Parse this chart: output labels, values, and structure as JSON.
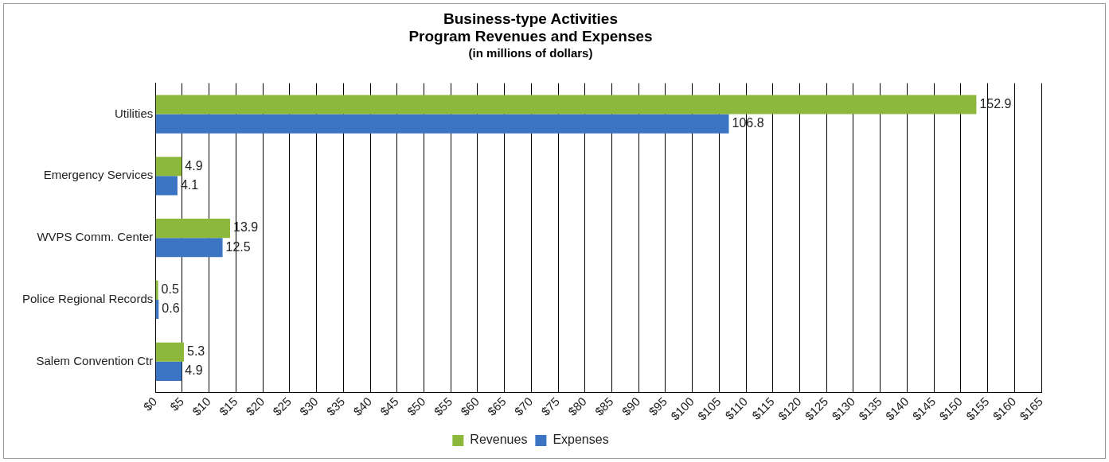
{
  "chart_data": {
    "type": "bar",
    "orientation": "horizontal",
    "title": "Business-type Activities\nProgram Revenues and Expenses",
    "subtitle": "(in millions of dollars)",
    "categories": [
      "Utilities",
      "Emergency Services",
      "WVPS Comm. Center",
      "Police Regional Records",
      "Salem Convention Ctr"
    ],
    "series": [
      {
        "name": "Revenues",
        "color": "#8cb83c",
        "values": [
          152.9,
          4.9,
          13.9,
          0.5,
          5.3
        ]
      },
      {
        "name": "Expenses",
        "color": "#3a74c2",
        "values": [
          106.8,
          4.1,
          12.5,
          0.6,
          4.9
        ]
      }
    ],
    "xlim": [
      0,
      165
    ],
    "xticks": [
      {
        "value": 0,
        "label": "$0"
      },
      {
        "value": 5,
        "label": "$5"
      },
      {
        "value": 10,
        "label": "$10"
      },
      {
        "value": 15,
        "label": "$15"
      },
      {
        "value": 20,
        "label": "$20"
      },
      {
        "value": 25,
        "label": "$25"
      },
      {
        "value": 30,
        "label": "$30"
      },
      {
        "value": 35,
        "label": "$35"
      },
      {
        "value": 40,
        "label": "$40"
      },
      {
        "value": 45,
        "label": "$45"
      },
      {
        "value": 50,
        "label": "$50"
      },
      {
        "value": 55,
        "label": "$55"
      },
      {
        "value": 60,
        "label": "$60"
      },
      {
        "value": 65,
        "label": "$65"
      },
      {
        "value": 70,
        "label": "$70"
      },
      {
        "value": 75,
        "label": "$75"
      },
      {
        "value": 80,
        "label": "$80"
      },
      {
        "value": 85,
        "label": "$85"
      },
      {
        "value": 90,
        "label": "$90"
      },
      {
        "value": 95,
        "label": "$95"
      },
      {
        "value": 100,
        "label": "$100"
      },
      {
        "value": 105,
        "label": "$105"
      },
      {
        "value": 110,
        "label": "$110"
      },
      {
        "value": 115,
        "label": "$115"
      },
      {
        "value": 120,
        "label": "$120"
      },
      {
        "value": 125,
        "label": "$125"
      },
      {
        "value": 130,
        "label": "$130"
      },
      {
        "value": 135,
        "label": "$135"
      },
      {
        "value": 140,
        "label": "$140"
      },
      {
        "value": 145,
        "label": "$145"
      },
      {
        "value": 150,
        "label": "$150"
      },
      {
        "value": 155,
        "label": "$155"
      },
      {
        "value": 160,
        "label": "$160"
      },
      {
        "value": 165,
        "label": "$165"
      }
    ],
    "grid": "x",
    "legend": "bottom",
    "data_labels": true
  }
}
